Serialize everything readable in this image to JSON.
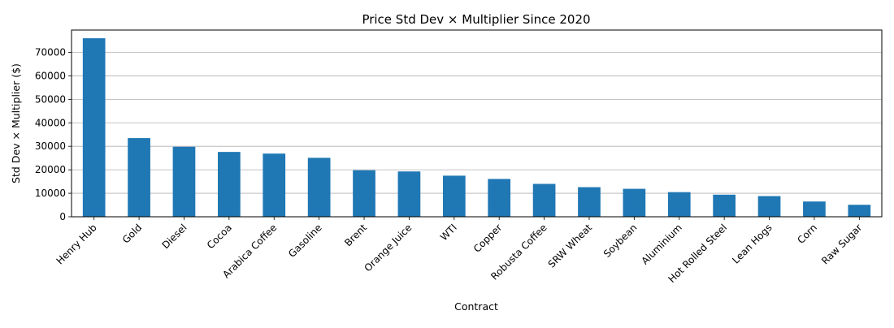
{
  "chart_data": {
    "type": "bar",
    "title": "Price Std Dev × Multiplier Since 2020",
    "xlabel": "Contract",
    "ylabel": "Std Dev × Multiplier ($)",
    "categories": [
      "Henry Hub",
      "Gold",
      "Diesel",
      "Cocoa",
      "Arabica Coffee",
      "Gasoline",
      "Brent",
      "Orange Juice",
      "WTI",
      "Copper",
      "Robusta Coffee",
      "SRW Wheat",
      "Soybean",
      "Aluminium",
      "Hot Rolled Steel",
      "Lean Hogs",
      "Corn",
      "Raw Sugar"
    ],
    "values": [
      76000,
      33500,
      29800,
      27600,
      26900,
      25100,
      19800,
      19300,
      17500,
      16100,
      14000,
      12600,
      11900,
      10500,
      9400,
      8800,
      6500,
      5100
    ],
    "ylim": [
      0,
      80000
    ],
    "yticks": [
      0,
      10000,
      20000,
      30000,
      40000,
      50000,
      60000,
      70000
    ],
    "grid": "y",
    "bar_color": "#1f77b4"
  }
}
